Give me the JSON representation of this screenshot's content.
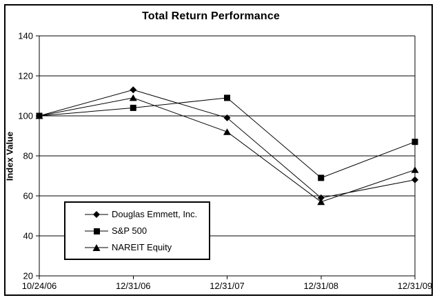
{
  "window": {
    "background": "#ffffff",
    "border_color": "#000000",
    "foreground": "#000000"
  },
  "chart_data": {
    "type": "line",
    "title": "Total Return Performance",
    "xlabel": "",
    "ylabel": "Index Value",
    "categories": [
      "10/24/06",
      "12/31/06",
      "12/31/07",
      "12/31/08",
      "12/31/09"
    ],
    "series": [
      {
        "name": "Douglas Emmett, Inc.",
        "marker": "diamond",
        "color": "#000000",
        "values": [
          100,
          113,
          99,
          59,
          68
        ]
      },
      {
        "name": "S&P 500",
        "marker": "square",
        "color": "#000000",
        "values": [
          100,
          104,
          109,
          69,
          87
        ]
      },
      {
        "name": "NAREIT Equity",
        "marker": "triangle",
        "color": "#000000",
        "values": [
          100,
          109,
          92,
          57,
          73
        ]
      }
    ],
    "ylim": [
      20,
      140
    ],
    "yticks": [
      20,
      40,
      60,
      80,
      100,
      120,
      140
    ],
    "grid": true,
    "gridline_color": "#000000",
    "legend_position": "inside-bottom-left"
  }
}
